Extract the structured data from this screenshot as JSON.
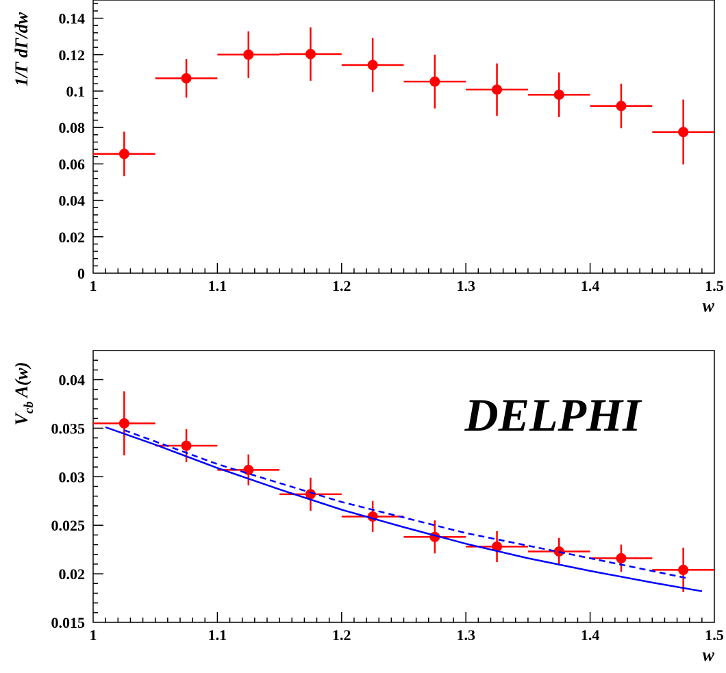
{
  "colors": {
    "points": "#ff0000",
    "curves": "#0000ff",
    "axes": "#000000"
  },
  "chart_data": [
    {
      "type": "scatter",
      "title": "",
      "xlabel": "w",
      "ylabel": "1/Γ dΓ/dw",
      "xlim": [
        1.0,
        1.5
      ],
      "ylim": [
        0,
        0.15
      ],
      "x_ticks": [
        "1",
        "1.1",
        "1.2",
        "1.3",
        "1.4",
        "1.5"
      ],
      "y_ticks": [
        "0",
        "0.02",
        "0.04",
        "0.06",
        "0.08",
        "0.1",
        "0.12",
        "0.14"
      ],
      "grid": false,
      "series": [
        {
          "x": [
            1.025,
            1.075,
            1.125,
            1.175,
            1.225,
            1.275,
            1.325,
            1.375,
            1.425,
            1.475
          ],
          "x_err": [
            0.025,
            0.025,
            0.025,
            0.025,
            0.025,
            0.025,
            0.025,
            0.025,
            0.025,
            0.025
          ],
          "values": [
            0.0655,
            0.107,
            0.12,
            0.1203,
            0.1143,
            0.1052,
            0.1008,
            0.098,
            0.0918,
            0.0775
          ],
          "y_err": [
            0.0122,
            0.0106,
            0.0128,
            0.0146,
            0.0148,
            0.0148,
            0.0144,
            0.0122,
            0.0122,
            0.0178
          ]
        }
      ]
    },
    {
      "type": "scatter",
      "title": "",
      "xlabel": "w",
      "ylabel": "V_cb A(w)",
      "xlim": [
        1.0,
        1.5
      ],
      "ylim": [
        0.015,
        0.043
      ],
      "x_ticks": [
        "1",
        "1.1",
        "1.2",
        "1.3",
        "1.4",
        "1.5"
      ],
      "y_ticks": [
        "0.015",
        "0.02",
        "0.025",
        "0.03",
        "0.035",
        "0.04"
      ],
      "grid": false,
      "annotation": "DELPHI",
      "series": [
        {
          "x": [
            1.025,
            1.075,
            1.125,
            1.175,
            1.225,
            1.275,
            1.325,
            1.375,
            1.425,
            1.475
          ],
          "x_err": [
            0.025,
            0.025,
            0.025,
            0.025,
            0.025,
            0.025,
            0.025,
            0.025,
            0.025,
            0.025
          ],
          "values": [
            0.0355,
            0.0332,
            0.0307,
            0.0282,
            0.0259,
            0.0238,
            0.0228,
            0.0223,
            0.0216,
            0.0204
          ],
          "y_err": [
            0.0033,
            0.0017,
            0.0016,
            0.0017,
            0.0016,
            0.0017,
            0.0016,
            0.0014,
            0.0014,
            0.0023
          ]
        },
        {
          "line": "solid",
          "x": [
            1.01,
            1.05,
            1.1,
            1.15,
            1.2,
            1.25,
            1.3,
            1.35,
            1.4,
            1.45,
            1.49
          ],
          "values": [
            0.0351,
            0.0333,
            0.0309,
            0.0287,
            0.0266,
            0.0248,
            0.0231,
            0.0216,
            0.0203,
            0.0191,
            0.0182
          ]
        },
        {
          "line": "dashed",
          "x": [
            1.025,
            1.1,
            1.2,
            1.3,
            1.4,
            1.48
          ],
          "values": [
            0.0348,
            0.0313,
            0.0274,
            0.0242,
            0.0216,
            0.0195
          ]
        }
      ]
    }
  ]
}
